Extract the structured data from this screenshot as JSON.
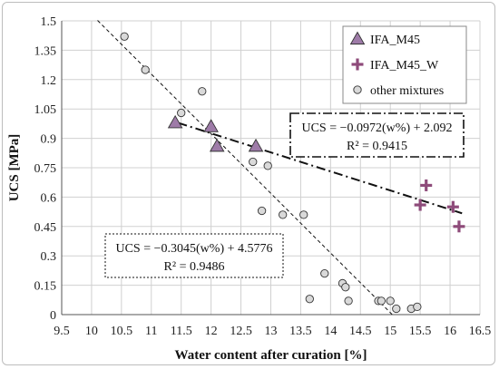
{
  "chart_data": {
    "type": "scatter",
    "xlabel": "Water content after curation [%]",
    "ylabel": "UCS [MPa]",
    "xlim": [
      9.5,
      16.5
    ],
    "ylim": [
      0,
      1.5
    ],
    "xticks": [
      "9.5",
      "10",
      "10.5",
      "11",
      "11.5",
      "12",
      "12.5",
      "13",
      "13.5",
      "14",
      "14.5",
      "15",
      "15.5",
      "16",
      "16.5"
    ],
    "yticks": [
      "0",
      "0.15",
      "0.3",
      "0.45",
      "0.6",
      "0.75",
      "0.9",
      "1.05",
      "1.2",
      "1.35",
      "1.5"
    ],
    "grid": true,
    "legend_position": "top-right",
    "series": [
      {
        "name": "IFA_M45",
        "marker": "triangle",
        "color": "#9e7ba8",
        "points": [
          [
            11.4,
            0.98
          ],
          [
            12.0,
            0.96
          ],
          [
            12.1,
            0.86
          ],
          [
            12.75,
            0.86
          ]
        ]
      },
      {
        "name": "IFA_M45_W",
        "marker": "plus",
        "color": "#8e4b7a",
        "points": [
          [
            15.5,
            0.56
          ],
          [
            15.6,
            0.66
          ],
          [
            16.05,
            0.55
          ],
          [
            16.15,
            0.45
          ]
        ]
      },
      {
        "name": "other mixtures",
        "marker": "circle",
        "color": "#d9d9d9",
        "points": [
          [
            10.55,
            1.42
          ],
          [
            10.9,
            1.25
          ],
          [
            11.5,
            1.03
          ],
          [
            11.85,
            1.14
          ],
          [
            12.7,
            0.78
          ],
          [
            12.95,
            0.76
          ],
          [
            12.85,
            0.53
          ],
          [
            13.2,
            0.51
          ],
          [
            13.55,
            0.51
          ],
          [
            13.65,
            0.08
          ],
          [
            13.9,
            0.21
          ],
          [
            14.2,
            0.16
          ],
          [
            14.25,
            0.14
          ],
          [
            14.3,
            0.07
          ],
          [
            14.8,
            0.07
          ],
          [
            14.85,
            0.07
          ],
          [
            15.0,
            0.07
          ],
          [
            15.1,
            0.03
          ],
          [
            15.35,
            0.03
          ],
          [
            15.45,
            0.04
          ]
        ]
      }
    ],
    "trendlines": [
      {
        "style": "dashed",
        "equation": "UCS = −0.3045(w%) + 4.5776",
        "r2": "R² = 0.9486",
        "slope": -0.3045,
        "intercept": 4.5776,
        "x_range": [
          10.1,
          15.03
        ]
      },
      {
        "style": "dash-dot",
        "equation": "UCS = −0.0972(w%) + 2.092",
        "r2": "R² = 0.9415",
        "slope": -0.0972,
        "intercept": 2.092,
        "x_range": [
          11.45,
          16.2
        ]
      }
    ]
  }
}
